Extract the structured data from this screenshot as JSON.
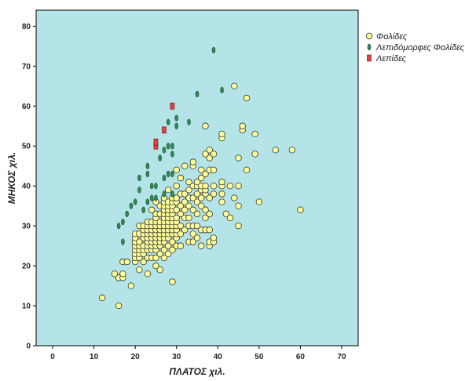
{
  "chart_data": {
    "type": "scatter",
    "xlabel": "ΠΛΑΤΟΣ χιλ.",
    "ylabel": "ΜΗΚΟΣ χιλ.",
    "xlim": [
      -4,
      74
    ],
    "ylim": [
      0,
      84
    ],
    "xticks": [
      "0",
      "10",
      "20",
      "30",
      "40",
      "50",
      "60",
      "70"
    ],
    "yticks": [
      "0",
      "10",
      "20",
      "30",
      "40",
      "50",
      "60",
      "70",
      "80"
    ],
    "grid": false,
    "legend_position": "top-right",
    "background_color": "#b4e4e8",
    "series": [
      {
        "name": "Φολίδες",
        "marker": "circle",
        "color": "#ffff99",
        "points": [
          [
            12,
            12
          ],
          [
            15,
            18
          ],
          [
            16,
            10
          ],
          [
            16,
            17
          ],
          [
            17,
            17
          ],
          [
            17,
            21
          ],
          [
            18,
            21
          ],
          [
            19,
            15
          ],
          [
            17,
            18
          ],
          [
            20,
            21
          ],
          [
            20,
            22
          ],
          [
            20,
            23
          ],
          [
            20,
            24
          ],
          [
            20,
            25
          ],
          [
            20,
            26
          ],
          [
            20,
            27
          ],
          [
            20,
            28
          ],
          [
            21,
            19
          ],
          [
            21,
            22
          ],
          [
            21,
            23
          ],
          [
            21,
            24
          ],
          [
            21,
            25
          ],
          [
            21,
            26
          ],
          [
            21,
            28
          ],
          [
            21,
            30
          ],
          [
            22,
            21
          ],
          [
            22,
            23
          ],
          [
            22,
            24
          ],
          [
            22,
            25
          ],
          [
            22,
            27
          ],
          [
            22,
            28
          ],
          [
            22,
            29
          ],
          [
            22,
            30
          ],
          [
            23,
            18
          ],
          [
            23,
            22
          ],
          [
            23,
            24
          ],
          [
            23,
            25
          ],
          [
            23,
            26
          ],
          [
            23,
            27
          ],
          [
            23,
            28
          ],
          [
            23,
            29
          ],
          [
            23,
            30
          ],
          [
            23,
            31
          ],
          [
            24,
            22
          ],
          [
            24,
            24
          ],
          [
            24,
            25
          ],
          [
            24,
            26
          ],
          [
            24,
            27
          ],
          [
            24,
            28
          ],
          [
            24,
            29
          ],
          [
            24,
            30
          ],
          [
            24,
            31
          ],
          [
            24,
            34
          ],
          [
            25,
            20
          ],
          [
            25,
            22
          ],
          [
            25,
            24
          ],
          [
            25,
            25
          ],
          [
            25,
            26
          ],
          [
            25,
            27
          ],
          [
            25,
            28
          ],
          [
            25,
            29
          ],
          [
            25,
            30
          ],
          [
            25,
            31
          ],
          [
            25,
            32
          ],
          [
            25,
            33
          ],
          [
            25,
            36
          ],
          [
            26,
            19
          ],
          [
            26,
            23
          ],
          [
            26,
            25
          ],
          [
            26,
            26
          ],
          [
            26,
            27
          ],
          [
            26,
            28
          ],
          [
            26,
            29
          ],
          [
            26,
            30
          ],
          [
            26,
            31
          ],
          [
            26,
            33
          ],
          [
            26,
            35
          ],
          [
            27,
            22
          ],
          [
            27,
            24
          ],
          [
            27,
            26
          ],
          [
            27,
            27
          ],
          [
            27,
            28
          ],
          [
            27,
            29
          ],
          [
            27,
            30
          ],
          [
            27,
            31
          ],
          [
            27,
            32
          ],
          [
            27,
            33
          ],
          [
            27,
            34
          ],
          [
            27,
            35
          ],
          [
            27,
            36
          ],
          [
            27,
            37
          ],
          [
            28,
            23
          ],
          [
            28,
            25
          ],
          [
            28,
            27
          ],
          [
            28,
            28
          ],
          [
            28,
            29
          ],
          [
            28,
            30
          ],
          [
            28,
            31
          ],
          [
            28,
            32
          ],
          [
            28,
            33
          ],
          [
            28,
            34
          ],
          [
            28,
            35
          ],
          [
            28,
            36
          ],
          [
            28,
            39
          ],
          [
            29,
            16
          ],
          [
            29,
            24
          ],
          [
            29,
            26
          ],
          [
            29,
            28
          ],
          [
            29,
            29
          ],
          [
            29,
            30
          ],
          [
            29,
            31
          ],
          [
            29,
            32
          ],
          [
            29,
            33
          ],
          [
            29,
            34
          ],
          [
            29,
            35
          ],
          [
            29,
            36
          ],
          [
            29,
            37
          ],
          [
            30,
            25
          ],
          [
            30,
            27
          ],
          [
            30,
            28
          ],
          [
            30,
            29
          ],
          [
            30,
            30
          ],
          [
            30,
            31
          ],
          [
            30,
            32
          ],
          [
            30,
            34
          ],
          [
            30,
            36
          ],
          [
            30,
            37
          ],
          [
            30,
            40
          ],
          [
            30,
            44
          ],
          [
            31,
            25
          ],
          [
            31,
            28
          ],
          [
            31,
            30
          ],
          [
            31,
            33
          ],
          [
            31,
            35
          ],
          [
            31,
            38
          ],
          [
            31,
            42
          ],
          [
            32,
            29
          ],
          [
            32,
            32
          ],
          [
            32,
            34
          ],
          [
            32,
            36
          ],
          [
            32,
            38
          ],
          [
            32,
            45
          ],
          [
            33,
            26
          ],
          [
            33,
            30
          ],
          [
            33,
            32
          ],
          [
            33,
            35
          ],
          [
            33,
            37
          ],
          [
            33,
            39
          ],
          [
            33,
            41
          ],
          [
            34,
            26
          ],
          [
            34,
            28
          ],
          [
            34,
            30
          ],
          [
            34,
            34
          ],
          [
            34,
            37
          ],
          [
            34,
            40
          ],
          [
            34,
            45
          ],
          [
            34,
            46
          ],
          [
            35,
            27
          ],
          [
            35,
            30
          ],
          [
            35,
            33
          ],
          [
            35,
            36
          ],
          [
            35,
            38
          ],
          [
            35,
            40
          ],
          [
            35,
            41
          ],
          [
            36,
            25
          ],
          [
            36,
            29
          ],
          [
            36,
            35
          ],
          [
            36,
            37
          ],
          [
            36,
            39
          ],
          [
            36,
            40
          ],
          [
            36,
            42
          ],
          [
            36,
            44
          ],
          [
            37,
            29
          ],
          [
            37,
            32
          ],
          [
            37,
            34
          ],
          [
            37,
            38
          ],
          [
            37,
            39
          ],
          [
            37,
            40
          ],
          [
            37,
            43
          ],
          [
            37,
            48
          ],
          [
            37,
            55
          ],
          [
            38,
            25
          ],
          [
            38,
            26
          ],
          [
            38,
            29
          ],
          [
            38,
            33
          ],
          [
            38,
            37
          ],
          [
            38,
            44
          ],
          [
            38,
            47
          ],
          [
            38,
            49
          ],
          [
            39,
            26
          ],
          [
            39,
            27
          ],
          [
            39,
            38
          ],
          [
            39,
            40
          ],
          [
            39,
            44
          ],
          [
            39,
            48
          ],
          [
            41,
            36
          ],
          [
            41,
            38
          ],
          [
            41,
            40
          ],
          [
            41,
            41
          ],
          [
            41,
            52
          ],
          [
            41,
            53
          ],
          [
            42,
            33
          ],
          [
            43,
            32
          ],
          [
            43,
            40
          ],
          [
            44,
            37
          ],
          [
            44,
            65
          ],
          [
            45,
            30
          ],
          [
            45,
            35
          ],
          [
            45,
            40
          ],
          [
            45,
            47
          ],
          [
            46,
            54
          ],
          [
            46,
            55
          ],
          [
            47,
            44
          ],
          [
            47,
            62
          ],
          [
            49,
            48
          ],
          [
            49,
            53
          ],
          [
            50,
            36
          ],
          [
            54,
            49
          ],
          [
            58,
            49
          ],
          [
            60,
            34
          ]
        ]
      },
      {
        "name": "Λεπιδόμορφες Φολίδες",
        "marker": "ellipse",
        "color": "#2e8b57",
        "points": [
          [
            16,
            30
          ],
          [
            17,
            26
          ],
          [
            17,
            31
          ],
          [
            18,
            33
          ],
          [
            19,
            35
          ],
          [
            20,
            36
          ],
          [
            21,
            39
          ],
          [
            21,
            42
          ],
          [
            22,
            34
          ],
          [
            23,
            36
          ],
          [
            23,
            43
          ],
          [
            23,
            45
          ],
          [
            24,
            37
          ],
          [
            24,
            40
          ],
          [
            25,
            37
          ],
          [
            25,
            40
          ],
          [
            25,
            51
          ],
          [
            26,
            47
          ],
          [
            27,
            38
          ],
          [
            27,
            42
          ],
          [
            27,
            49
          ],
          [
            28,
            43
          ],
          [
            28,
            50
          ],
          [
            28,
            56
          ],
          [
            29,
            38
          ],
          [
            29,
            43
          ],
          [
            29,
            48
          ],
          [
            29,
            50
          ],
          [
            30,
            57
          ],
          [
            30,
            55
          ],
          [
            33,
            56
          ],
          [
            35,
            63
          ],
          [
            39,
            74
          ],
          [
            41,
            64
          ]
        ]
      },
      {
        "name": "Λεπίδες",
        "marker": "rect",
        "color": "#dd4444",
        "points": [
          [
            25,
            50
          ],
          [
            25,
            51
          ],
          [
            27,
            54
          ],
          [
            29,
            60
          ]
        ]
      }
    ]
  }
}
